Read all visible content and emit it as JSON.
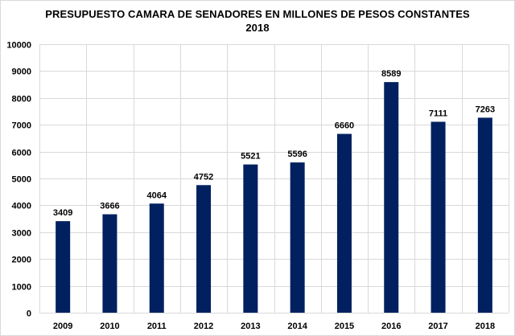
{
  "chart_data": {
    "type": "bar",
    "title": "PRESUPUESTO  CAMARA  DE SENADORES  EN MILLONES DE PESOS CONSTANTES",
    "subtitle": "2018",
    "xlabel": "",
    "ylabel": "",
    "categories": [
      "2009",
      "2010",
      "2011",
      "2012",
      "2013",
      "2014",
      "2015",
      "2016",
      "2017",
      "2018"
    ],
    "values": [
      3409,
      3666,
      4064,
      4752,
      5521,
      5596,
      6660,
      8589,
      7111,
      7263
    ],
    "data_labels": [
      "3409",
      "3666",
      "4064",
      "4752",
      "5521",
      "5596",
      "6660",
      "8589",
      "7111",
      "7263"
    ],
    "ylim": [
      0,
      10000
    ],
    "yticks": [
      0,
      1000,
      2000,
      3000,
      4000,
      5000,
      6000,
      7000,
      8000,
      9000,
      10000
    ],
    "ytick_labels": [
      "0",
      "1000",
      "2000",
      "3000",
      "4000",
      "5000",
      "6000",
      "7000",
      "8000",
      "9000",
      "10000"
    ],
    "grid": true,
    "legend": "none",
    "bar_color": "#002060",
    "grid_color": "#d9d9d9"
  }
}
